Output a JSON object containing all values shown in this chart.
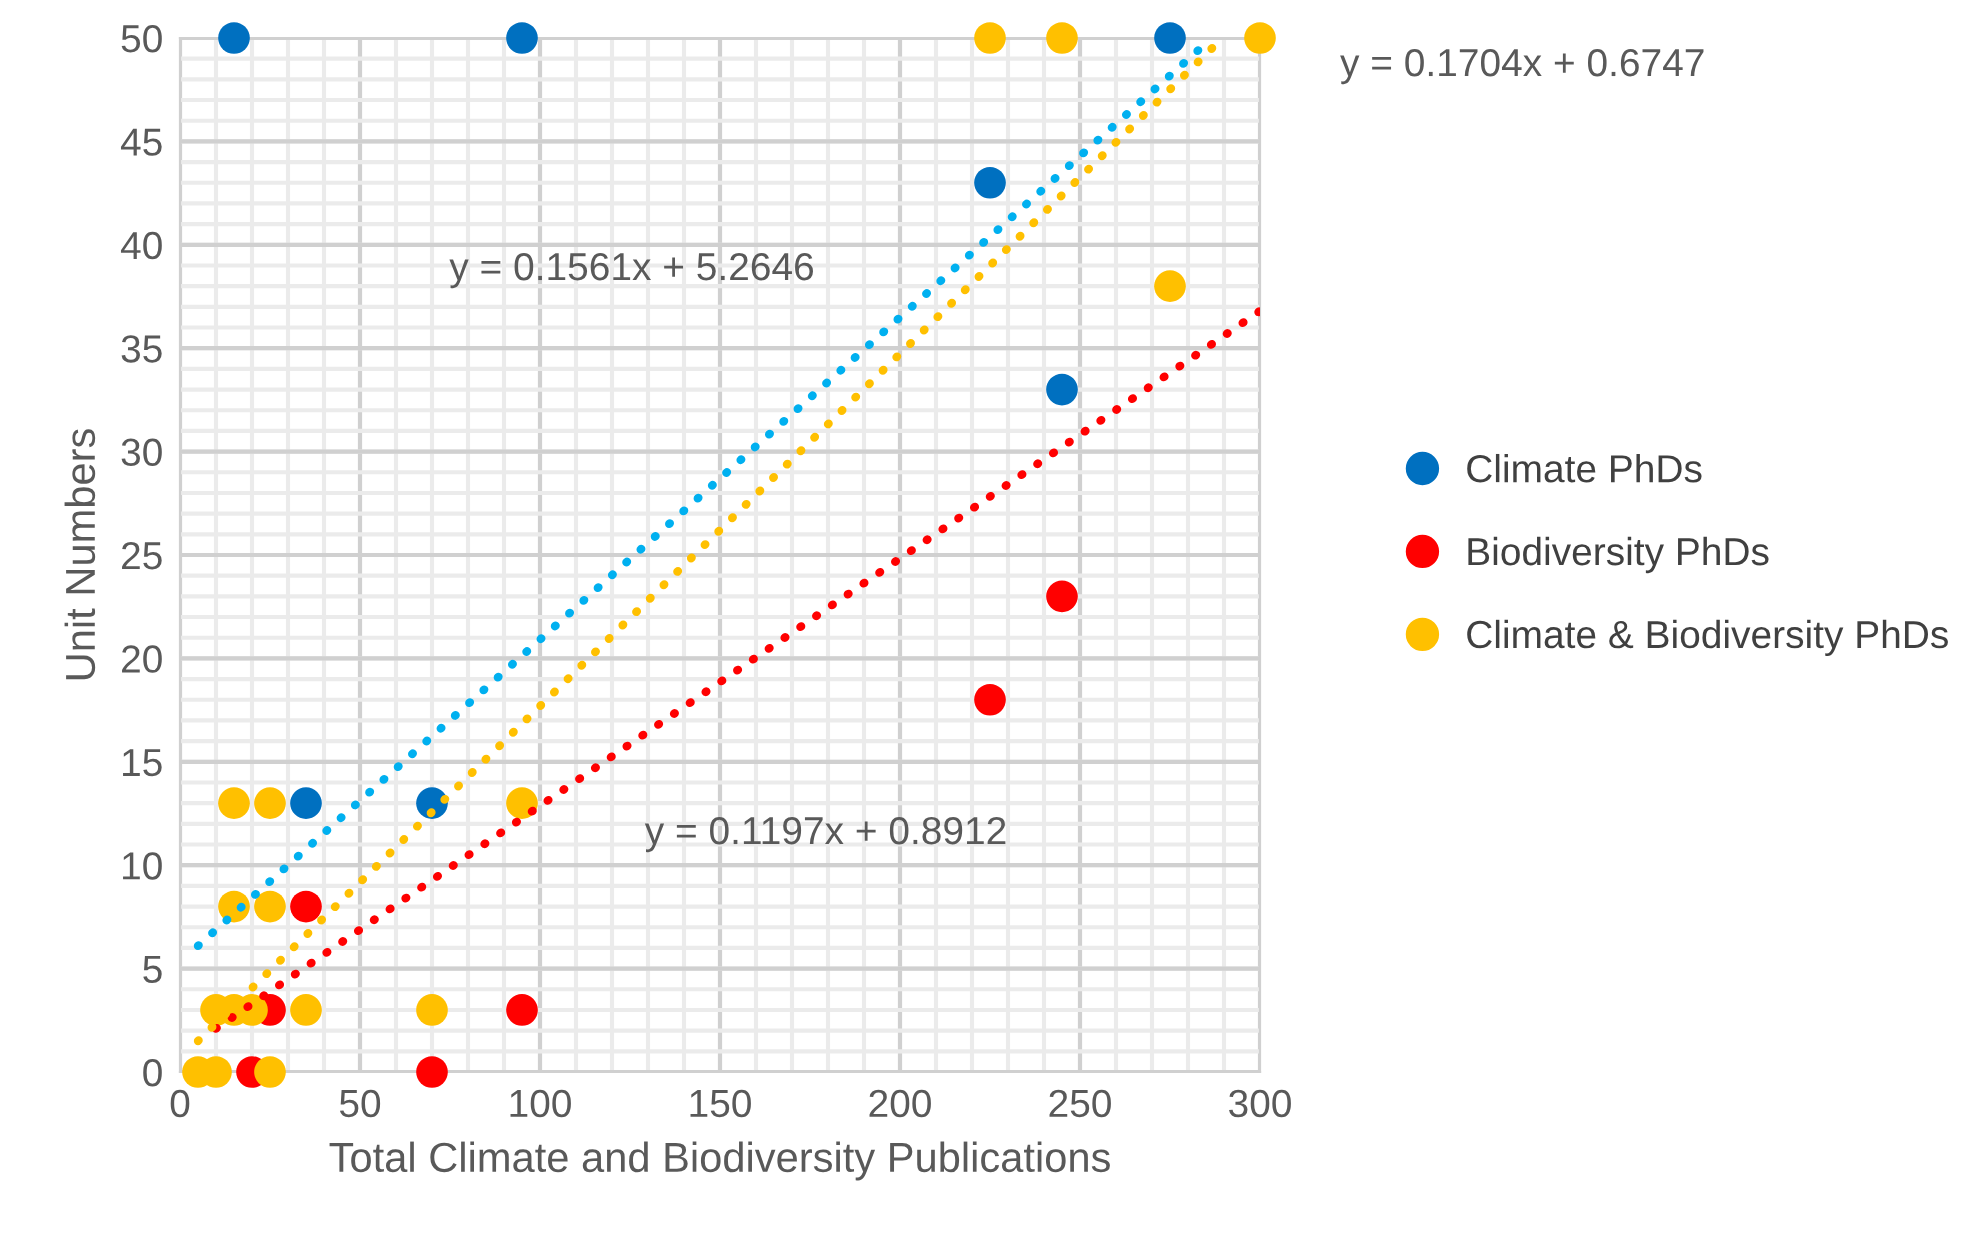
{
  "chart_data": {
    "type": "scatter",
    "xlabel": "Total Climate and Biodiversity Publications",
    "ylabel": "Unit Numbers",
    "xlim": [
      0,
      300
    ],
    "xticks": [
      0,
      50,
      100,
      150,
      200,
      250,
      300
    ],
    "ylim": [
      0,
      50
    ],
    "yticks": [
      0,
      5,
      10,
      15,
      20,
      25,
      30,
      35,
      40,
      45,
      50
    ],
    "grid": true,
    "legend": "right",
    "marker": "circle",
    "series": [
      {
        "name": "Climate PhDs",
        "color": "#0070c0",
        "x": [
          15,
          95,
          275,
          225,
          245,
          35,
          70
        ],
        "values": [
          50,
          50,
          50,
          43,
          33,
          13,
          13
        ]
      },
      {
        "name": "Biodiversity PhDs",
        "color": "#ff0000",
        "x": [
          35,
          245,
          225,
          95,
          70,
          20,
          25
        ],
        "values": [
          8,
          23,
          18,
          3,
          0,
          0,
          3
        ]
      },
      {
        "name": "Climate & Biodiversity PhDs",
        "color": "#ffc000",
        "x": [
          225,
          245,
          300,
          275,
          95,
          70,
          35,
          25,
          15,
          25,
          15,
          20,
          15,
          10,
          5,
          10,
          25
        ],
        "values": [
          50,
          50,
          50,
          38,
          13,
          3,
          3,
          13,
          13,
          8,
          8,
          3,
          3,
          3,
          0,
          0,
          0
        ]
      },
      {
        "type": "line",
        "color": "#00b0f0",
        "line_style": "dotted",
        "marker": "none",
        "x": [
          5,
          286
        ],
        "values": [
          6.1,
          49.9
        ]
      },
      {
        "type": "line",
        "color": "#ff0000",
        "line_style": "dotted",
        "marker": "none",
        "x": [
          10,
          300
        ],
        "values": [
          2.1,
          36.8
        ]
      },
      {
        "type": "line",
        "color": "#ffc000",
        "line_style": "dotted",
        "marker": "none",
        "x": [
          5,
          289
        ],
        "values": [
          1.5,
          49.9
        ]
      }
    ],
    "annotations": [
      "y = 0.1704x + 0.6747",
      "y = 0.1561x + 5.2646",
      "y = 0.1197x + 0.8912"
    ]
  }
}
